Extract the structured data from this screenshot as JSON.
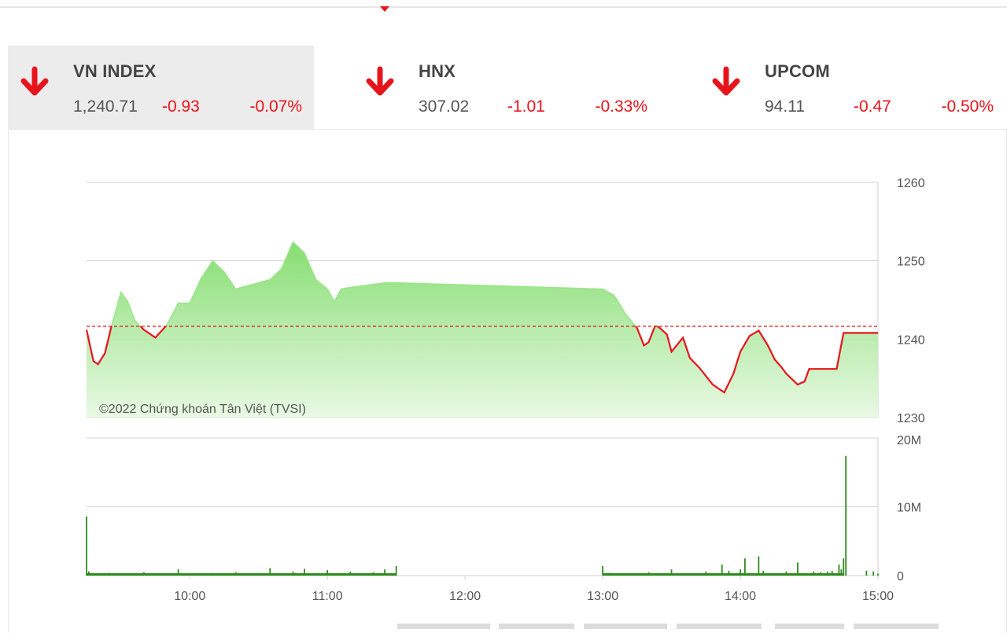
{
  "indices": [
    {
      "name": "VN INDEX",
      "value": "1,240.71",
      "change": "-0.93",
      "percent": "-0.07%",
      "active": true
    },
    {
      "name": "HNX",
      "value": "307.02",
      "change": "-1.01",
      "percent": "-0.33%",
      "active": false
    },
    {
      "name": "UPCOM",
      "value": "94.11",
      "change": "-0.47",
      "percent": "-0.50%",
      "active": false
    }
  ],
  "colors": {
    "up_fill": "#8fe07a",
    "up_line": "#9be58a",
    "down_line": "#e8141b",
    "reference": "#e8141b",
    "volume": "#2e8b1e",
    "grid": "#d0d0d0"
  },
  "chart_data": [
    {
      "type": "area",
      "annotation": "©2022 Chứng khoán Tân Việt (TVSI)",
      "reference": 1241.64,
      "ylim": [
        1230,
        1260
      ],
      "yticks": [
        "1260",
        "1250",
        "1240",
        "1230"
      ],
      "xticks": [
        "10:00",
        "11:00",
        "12:00",
        "13:00",
        "14:00",
        "15:00"
      ],
      "series": [
        {
          "x": [
            "09:15",
            "09:18",
            "09:20",
            "09:23",
            "09:26",
            "09:30",
            "09:33",
            "09:36",
            "09:40",
            "09:45",
            "09:50",
            "09:55",
            "10:00",
            "10:05",
            "10:10",
            "10:15",
            "10:20",
            "10:25",
            "10:30",
            "10:35",
            "10:40",
            "10:45",
            "10:50",
            "10:55",
            "11:00",
            "11:03",
            "11:06",
            "11:10",
            "11:15",
            "11:20",
            "11:25",
            "11:30",
            "13:00",
            "13:05",
            "13:10",
            "13:15",
            "13:18",
            "13:20",
            "13:23",
            "13:25",
            "13:28",
            "13:30",
            "13:35",
            "13:38",
            "13:42",
            "13:48",
            "13:53",
            "13:57",
            "14:00",
            "14:04",
            "14:08",
            "14:12",
            "14:15",
            "14:18",
            "14:20",
            "14:25",
            "14:28",
            "14:30",
            "14:40",
            "14:42",
            "14:45",
            "15:00"
          ],
          "values": [
            1241.2,
            1237.2,
            1236.8,
            1238.2,
            1241.8,
            1246,
            1244.8,
            1242.4,
            1241.2,
            1240.2,
            1241.8,
            1244.6,
            1244.6,
            1247.8,
            1250,
            1248.6,
            1246.4,
            1246.8,
            1247.2,
            1247.6,
            1249,
            1252.4,
            1251,
            1247.6,
            1246.4,
            1244.8,
            1246.4,
            1246.6,
            1246.8,
            1247,
            1247.2,
            1247.2,
            1246.4,
            1245.6,
            1243.2,
            1241.4,
            1239.2,
            1239.6,
            1241.8,
            1241.4,
            1240.6,
            1238.4,
            1240.2,
            1237.6,
            1236.4,
            1234.2,
            1233.2,
            1235.6,
            1238.4,
            1240.4,
            1241.1,
            1239.2,
            1237.4,
            1236.4,
            1235.6,
            1234.2,
            1234.6,
            1236.2,
            1236.2,
            1236.2,
            1240.8,
            1240.8
          ]
        }
      ]
    },
    {
      "type": "bar",
      "ylim": [
        0,
        20000000
      ],
      "yticks": [
        "20M",
        "10M",
        "0"
      ],
      "series": [
        {
          "x": [
            "09:15",
            "09:16",
            "09:25",
            "09:40",
            "09:55",
            "10:10",
            "10:20",
            "10:35",
            "10:45",
            "10:50",
            "11:00",
            "11:10",
            "11:20",
            "11:25",
            "11:30",
            "13:00",
            "13:03",
            "13:20",
            "13:30",
            "13:45",
            "13:52",
            "13:55",
            "14:00",
            "14:02",
            "14:08",
            "14:10",
            "14:20",
            "14:25",
            "14:32",
            "14:35",
            "14:38",
            "14:40",
            "14:43",
            "14:44",
            "14:45",
            "14:46",
            "14:55",
            "14:58",
            "15:00"
          ],
          "values": [
            8600000,
            600000,
            400000,
            500000,
            900000,
            400000,
            500000,
            1100000,
            600000,
            1000000,
            800000,
            600000,
            500000,
            900000,
            1400000,
            1400000,
            400000,
            500000,
            900000,
            600000,
            1600000,
            700000,
            900000,
            2500000,
            2800000,
            700000,
            600000,
            1900000,
            600000,
            500000,
            600000,
            700000,
            1600000,
            900000,
            2500000,
            17400000,
            700000,
            600000,
            300000
          ]
        }
      ]
    }
  ]
}
